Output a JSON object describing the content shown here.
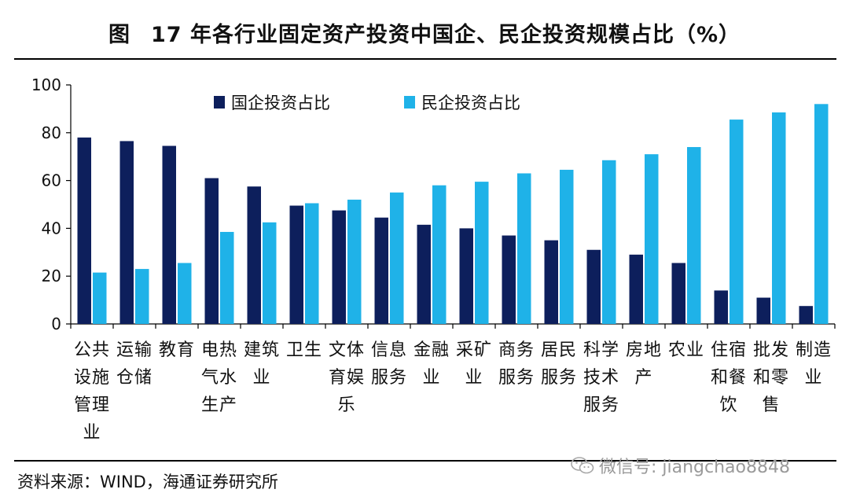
{
  "title": {
    "figure_label": "图",
    "text": "17 年各行业固定资产投资中国企、民企投资规模占比（%）"
  },
  "source": "资料来源：WIND，海通证券研究所",
  "watermark": "微信号: jiangchao8848",
  "colors": {
    "soe": "#0d1f5c",
    "private": "#1fb2e8"
  },
  "chart_data": {
    "type": "bar",
    "title": "17 年各行业固定资产投资中国企、民企投资规模占比（%）",
    "ylim": [
      0,
      100
    ],
    "yticks": [
      0,
      20,
      40,
      60,
      80,
      100
    ],
    "legend_position": "top",
    "categories": [
      [
        "公共",
        "设施",
        "管理",
        "业"
      ],
      [
        "运输",
        "仓储"
      ],
      [
        "教育"
      ],
      [
        "电热",
        "气水",
        "生产"
      ],
      [
        "建筑",
        "业"
      ],
      [
        "卫生"
      ],
      [
        "文体",
        "育娱",
        "乐"
      ],
      [
        "信息",
        "服务"
      ],
      [
        "金融",
        "业"
      ],
      [
        "采矿",
        "业"
      ],
      [
        "商务",
        "服务"
      ],
      [
        "居民",
        "服务"
      ],
      [
        "科学",
        "技术",
        "服务"
      ],
      [
        "房地",
        "产"
      ],
      [
        "农业"
      ],
      [
        "住宿",
        "和餐",
        "饮"
      ],
      [
        "批发",
        "和零",
        "售"
      ],
      [
        "制造",
        "业"
      ]
    ],
    "series": [
      {
        "name": "国企投资占比",
        "values": [
          78,
          76.5,
          74.5,
          61,
          57.5,
          49.5,
          47.5,
          44.5,
          41.5,
          40,
          37,
          35,
          31,
          29,
          25.5,
          14,
          11,
          7.5
        ]
      },
      {
        "name": "民企投资占比",
        "values": [
          21.5,
          23,
          25.5,
          38.5,
          42.5,
          50.5,
          52,
          55,
          58,
          59.5,
          63,
          64.5,
          68.5,
          71,
          74,
          85.5,
          88.5,
          92
        ]
      }
    ]
  }
}
